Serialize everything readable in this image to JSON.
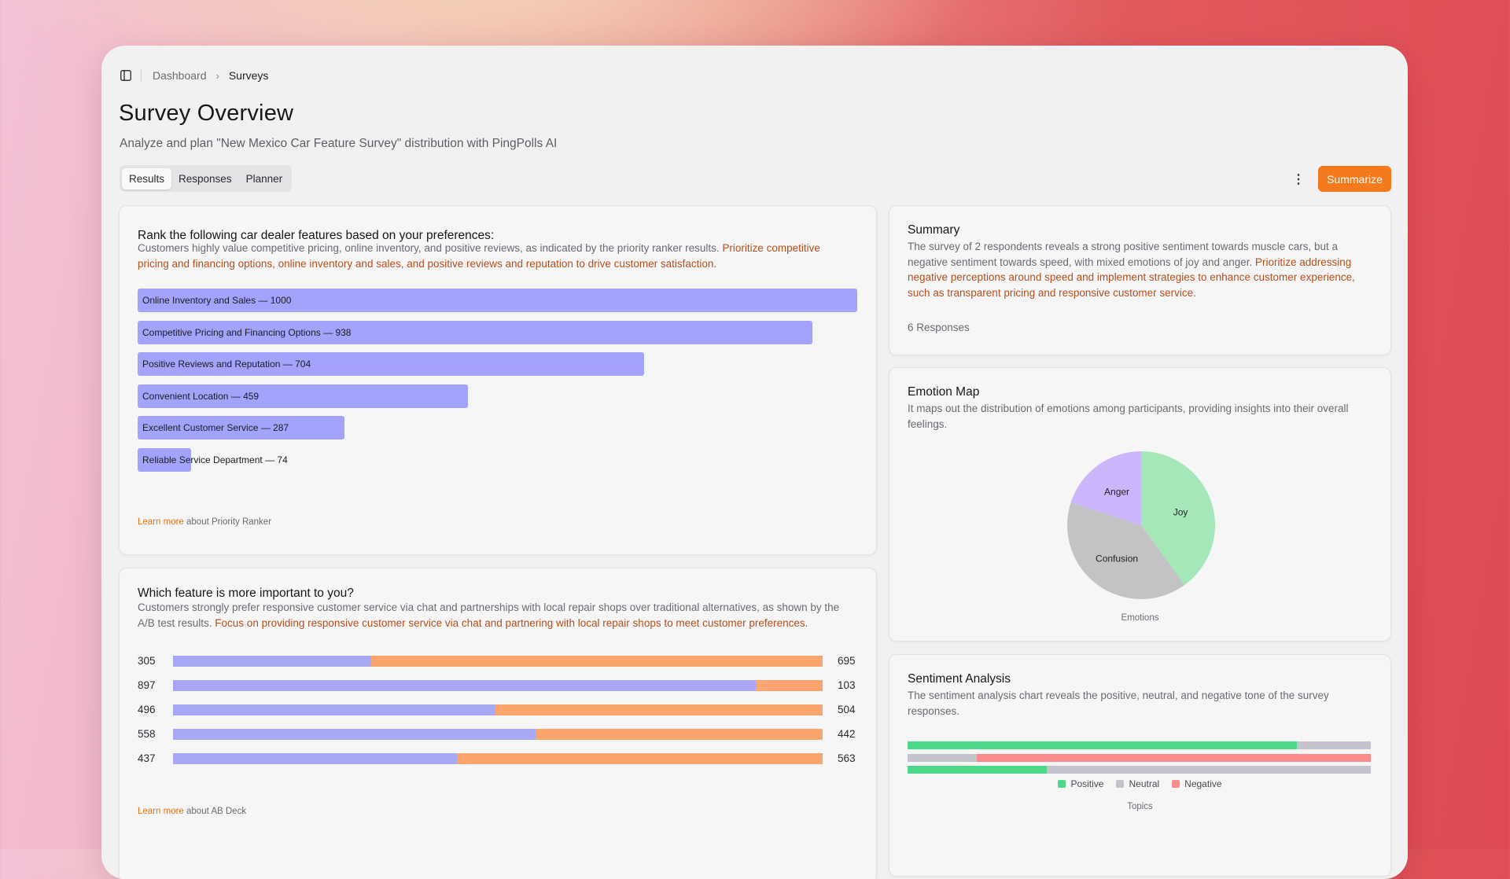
{
  "breadcrumb": {
    "items": [
      "Dashboard",
      "Surveys"
    ]
  },
  "header": {
    "title": "Survey Overview",
    "subtitle": "Analyze and plan \"New Mexico Car Feature Survey\" distribution with PingPolls AI"
  },
  "tabs": [
    {
      "label": "Results",
      "active": true
    },
    {
      "label": "Responses",
      "active": false
    },
    {
      "label": "Planner",
      "active": false
    }
  ],
  "actions": {
    "more_icon": "more-vertical-icon",
    "summarize_label": "Summarize",
    "accent": "#f57a1e"
  },
  "ranker": {
    "question": "Rank the following car dealer features based on your preferences:",
    "insight": "Customers highly value competitive pricing, online inventory, and positive reviews, as indicated by the priority ranker results. ",
    "recommendation": "Prioritize competitive pricing and financing options, online inventory and sales, and positive reviews and reputation to drive customer satisfaction.",
    "items": [
      {
        "label": "Online Inventory and Sales — 1000",
        "value": 1000
      },
      {
        "label": "Competitive Pricing and Financing Options — 938",
        "value": 938
      },
      {
        "label": "Positive Reviews and Reputation — 704",
        "value": 704
      },
      {
        "label": "Convenient Location — 459",
        "value": 459
      },
      {
        "label": "Excellent Customer Service — 287",
        "value": 287
      },
      {
        "label": "Reliable Service Department — 74",
        "value": 74
      }
    ],
    "max": 1000,
    "bar_color": "#a3a3fb",
    "learn_link": "Learn more",
    "learn_text": " about Priority Ranker"
  },
  "abtest": {
    "question": "Which feature is more important to you?",
    "insight": "Customers strongly prefer responsive customer service via chat and partnerships with local repair shops over traditional alternatives, as shown by the A/B test results. ",
    "recommendation": "Focus on providing responsive customer service via chat and partnering with local repair shops to meet customer preferences.",
    "rows": [
      {
        "left": 305,
        "right": 695
      },
      {
        "left": 897,
        "right": 103
      },
      {
        "left": 496,
        "right": 504
      },
      {
        "left": 558,
        "right": 442
      },
      {
        "left": 437,
        "right": 563
      }
    ],
    "colors": {
      "a": "#a9a8f7",
      "b": "#fba46e"
    },
    "learn_link": "Learn more",
    "learn_text": " about AB Deck"
  },
  "summary": {
    "title": "Summary",
    "insight": "The survey of 2 respondents reveals a strong positive sentiment towards muscle cars, but a negative sentiment towards speed, with mixed emotions of joy and anger. ",
    "recommendation": "Prioritize addressing negative perceptions around speed and implement strategies to enhance customer experience, such as transparent pricing and responsive customer service.",
    "responses": "6 Responses"
  },
  "emotion": {
    "title": "Emotion Map",
    "desc": "It maps out the distribution of emotions among participants, providing insights into their overall feelings.",
    "caption": "Emotions"
  },
  "sentiment": {
    "title": "Sentiment Analysis",
    "desc": "The sentiment analysis chart reveals the positive, neutral, and negative tone of the survey responses.",
    "caption": "Topics",
    "legend": [
      {
        "label": "Positive",
        "color": "#4ed98a"
      },
      {
        "label": "Neutral",
        "color": "#c4c4cc"
      },
      {
        "label": "Negative",
        "color": "#fb8a8f"
      }
    ]
  },
  "chart_data": [
    {
      "type": "pie",
      "xlabel": "Emotions",
      "slices": [
        {
          "label": "Joy",
          "value": 40,
          "color": "#a4e8b7"
        },
        {
          "label": "Confusion",
          "value": 40,
          "color": "#c3c3c6"
        },
        {
          "label": "Anger",
          "value": 20,
          "color": "#cbb6fb"
        }
      ]
    },
    {
      "type": "bar",
      "stacked": true,
      "orientation": "horizontal",
      "xlabel": "Topics",
      "categories": [
        "",
        "",
        ""
      ],
      "series": [
        {
          "name": "Positive",
          "values": [
            84,
            0,
            30
          ]
        },
        {
          "name": "Neutral",
          "values": [
            16,
            15,
            70
          ]
        },
        {
          "name": "Negative",
          "values": [
            0,
            85,
            0
          ]
        }
      ],
      "xlim": [
        0,
        100
      ]
    }
  ]
}
